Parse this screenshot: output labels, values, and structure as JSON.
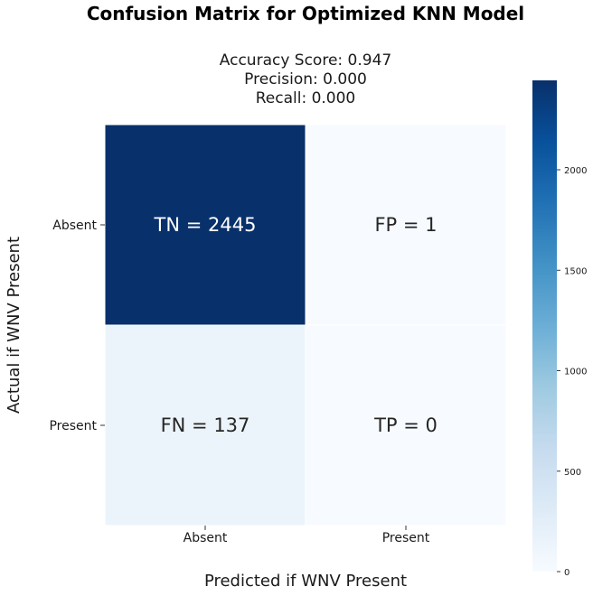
{
  "chart_data": {
    "type": "heatmap",
    "suptitle": "Confusion Matrix for Optimized KNN Model",
    "subtitle_lines": [
      "Accuracy Score: 0.947",
      "Precision: 0.000",
      "Recall: 0.000"
    ],
    "xlabel": "Predicted if WNV Present",
    "ylabel": "Actual if WNV Present",
    "x_categories": [
      "Absent",
      "Present"
    ],
    "y_categories": [
      "Absent",
      "Present"
    ],
    "cells": [
      [
        {
          "label": "TN = 2445",
          "value": 2445
        },
        {
          "label": "FP = 1",
          "value": 1
        }
      ],
      [
        {
          "label": "FN = 137",
          "value": 137
        },
        {
          "label": "TP = 0",
          "value": 0
        }
      ]
    ],
    "colormap": "Blues",
    "colorbar": {
      "min": 0,
      "max": 2445,
      "ticks": [
        0,
        500,
        1000,
        1500,
        2000
      ]
    }
  }
}
